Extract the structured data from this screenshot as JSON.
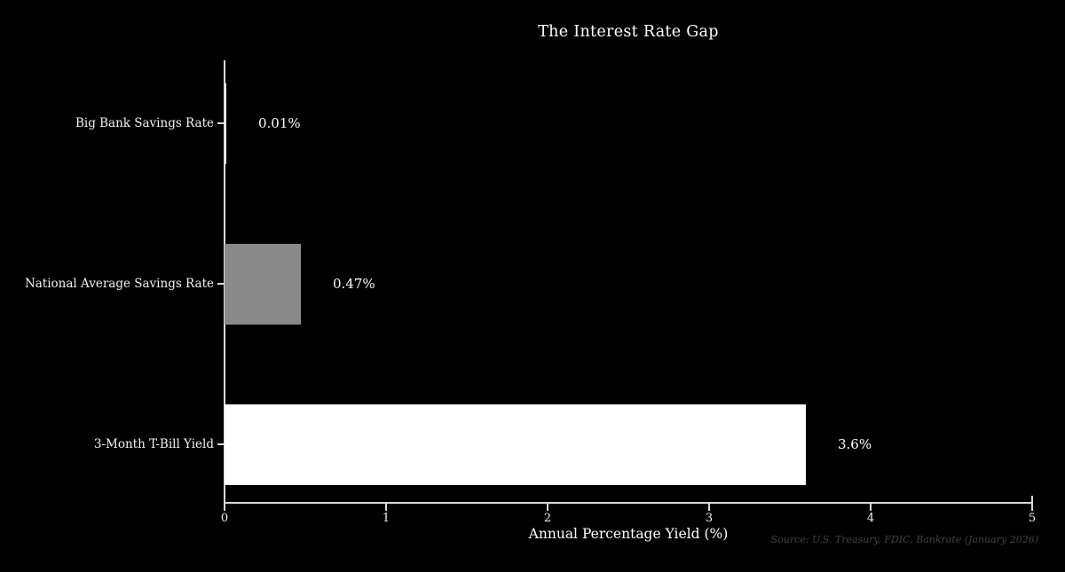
{
  "chart_data": {
    "type": "bar",
    "orientation": "horizontal",
    "title": "The Interest Rate Gap",
    "categories": [
      "Big Bank Savings Rate",
      "National Average Savings Rate",
      "3-Month T-Bill Yield"
    ],
    "values": [
      0.01,
      0.47,
      3.6
    ],
    "value_labels": [
      "0.01%",
      "0.47%",
      "3.6%"
    ],
    "bar_colors": [
      "#e8e8e8",
      "#898989",
      "#ffffff"
    ],
    "xlabel": "Annual Percentage Yield (%)",
    "ylabel": "",
    "xlim": [
      0,
      5
    ],
    "x_ticks": [
      "0",
      "1",
      "2",
      "3",
      "4",
      "5"
    ],
    "grid": false,
    "legend": null,
    "source_note": "Source: U.S. Treasury, FDIC, Bankrate (January 2026)",
    "colors": {
      "background": "#000000",
      "text": "#ffffff",
      "tick_text": "#f2f2f2",
      "axis": "#d9d9d9",
      "source_text": "#424242"
    }
  }
}
